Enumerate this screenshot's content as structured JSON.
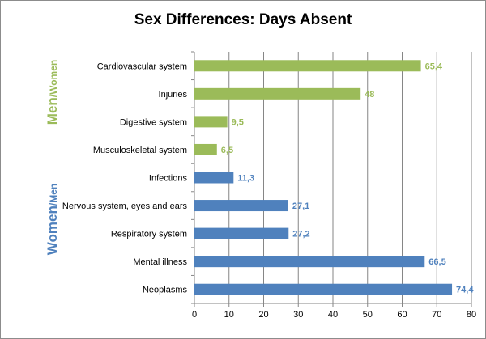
{
  "chart_data": {
    "type": "bar",
    "orientation": "horizontal",
    "title": "Sex Differences: Days Absent",
    "categories": [
      "Cardiovascular system",
      "Injuries",
      "Digestive system",
      "Musculoskeletal system",
      "Infections",
      "Nervous system, eyes and ears",
      "Respiratory system",
      "Mental illness",
      "Neoplasms"
    ],
    "values": [
      65.4,
      48,
      9.5,
      6.5,
      11.3,
      27.1,
      27.2,
      66.5,
      74.4
    ],
    "value_labels": [
      "65,4",
      "48",
      "9,5",
      "6,5",
      "11,3",
      "27,1",
      "27,2",
      "66,5",
      "74,4"
    ],
    "bar_colors": [
      "#9bbb59",
      "#9bbb59",
      "#9bbb59",
      "#9bbb59",
      "#4f81bd",
      "#4f81bd",
      "#4f81bd",
      "#4f81bd",
      "#4f81bd"
    ],
    "xlim": [
      0,
      80
    ],
    "xticks": [
      0,
      10,
      20,
      30,
      40,
      50,
      60,
      70,
      80
    ],
    "grid": "vertical",
    "groups": [
      {
        "label_main": "Men",
        "label_sub": "/Women",
        "color": "#9bbb59"
      },
      {
        "label_main": "Women",
        "label_sub": "/Men",
        "color": "#4f81bd"
      }
    ]
  },
  "colors": {
    "men_green": "#9bbb59",
    "women_blue": "#4f81bd",
    "gridline": "#868686"
  }
}
